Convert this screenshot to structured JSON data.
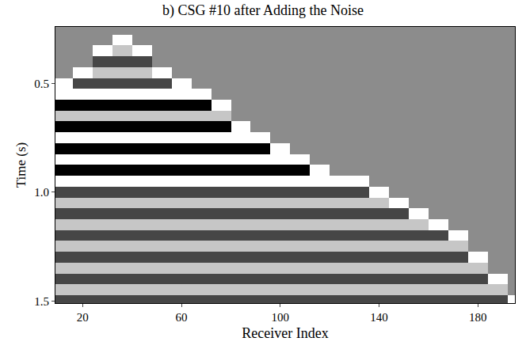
{
  "chart_data": {
    "type": "heatmap",
    "title": "b) CSG #10 after Adding the Noise",
    "xlabel": "Receiver Index",
    "ylabel": "Time (s)",
    "x": [
      12,
      20,
      28,
      36,
      44,
      52,
      60,
      68,
      76,
      84,
      92,
      100,
      108,
      116,
      124,
      132,
      140,
      148,
      156,
      164,
      172,
      180,
      188,
      196
    ],
    "y": [
      0.25,
      0.3,
      0.35,
      0.4,
      0.45,
      0.5,
      0.55,
      0.6,
      0.65,
      0.7,
      0.75,
      0.8,
      0.85,
      0.9,
      0.95,
      1.0,
      1.05,
      1.1,
      1.15,
      1.2,
      1.25,
      1.3,
      1.35,
      1.4,
      1.45,
      1.5
    ],
    "z": [
      [
        0,
        0,
        0,
        0,
        0,
        0,
        0,
        0,
        0,
        0,
        0,
        0,
        0,
        0,
        0,
        0,
        0,
        0,
        0,
        0,
        0,
        0,
        0,
        0
      ],
      [
        0,
        0,
        0,
        2,
        0,
        0,
        0,
        0,
        0,
        0,
        0,
        0,
        0,
        0,
        0,
        0,
        0,
        0,
        0,
        0,
        0,
        0,
        0,
        0
      ],
      [
        0,
        0,
        2,
        1,
        2,
        0,
        0,
        0,
        0,
        0,
        0,
        0,
        0,
        0,
        0,
        0,
        0,
        0,
        0,
        0,
        0,
        0,
        0,
        0
      ],
      [
        0,
        0,
        -1,
        -1,
        -1,
        0,
        0,
        0,
        0,
        0,
        0,
        0,
        0,
        0,
        0,
        0,
        0,
        0,
        0,
        0,
        0,
        0,
        0,
        0
      ],
      [
        0,
        2,
        1,
        1,
        1,
        2,
        0,
        0,
        0,
        0,
        0,
        0,
        0,
        0,
        0,
        0,
        0,
        0,
        0,
        0,
        0,
        0,
        0,
        0
      ],
      [
        2,
        -1,
        -1,
        -1,
        -1,
        -1,
        2,
        0,
        0,
        0,
        0,
        0,
        0,
        0,
        0,
        0,
        0,
        0,
        0,
        0,
        0,
        0,
        0,
        0
      ],
      [
        2,
        2,
        2,
        2,
        2,
        2,
        2,
        2,
        0,
        0,
        0,
        0,
        0,
        0,
        0,
        0,
        0,
        0,
        0,
        0,
        0,
        0,
        0,
        0
      ],
      [
        -2,
        -2,
        -2,
        -2,
        -2,
        -2,
        -2,
        -2,
        2,
        0,
        0,
        0,
        0,
        0,
        0,
        0,
        0,
        0,
        0,
        0,
        0,
        0,
        0,
        0
      ],
      [
        1,
        1,
        1,
        1,
        1,
        1,
        1,
        1,
        1,
        0,
        0,
        0,
        0,
        0,
        0,
        0,
        0,
        0,
        0,
        0,
        0,
        0,
        0,
        0
      ],
      [
        -2,
        -2,
        -2,
        -2,
        -2,
        -2,
        -2,
        -2,
        -2,
        2,
        0,
        0,
        0,
        0,
        0,
        0,
        0,
        0,
        0,
        0,
        0,
        0,
        0,
        0
      ],
      [
        2,
        2,
        2,
        2,
        2,
        2,
        2,
        2,
        2,
        2,
        2,
        0,
        0,
        0,
        0,
        0,
        0,
        0,
        0,
        0,
        0,
        0,
        0,
        0
      ],
      [
        -2,
        -2,
        -2,
        -2,
        -2,
        -2,
        -2,
        -2,
        -2,
        -2,
        -2,
        2,
        0,
        0,
        0,
        0,
        0,
        0,
        0,
        0,
        0,
        0,
        0,
        0
      ],
      [
        2,
        2,
        2,
        2,
        2,
        2,
        2,
        2,
        2,
        2,
        2,
        2,
        2,
        0,
        0,
        0,
        0,
        0,
        0,
        0,
        0,
        0,
        0,
        0
      ],
      [
        -2,
        -2,
        -2,
        -2,
        -2,
        -2,
        -2,
        -2,
        -2,
        -2,
        -2,
        -2,
        -2,
        2,
        0,
        0,
        0,
        0,
        0,
        0,
        0,
        0,
        0,
        0
      ],
      [
        2,
        2,
        2,
        2,
        2,
        2,
        2,
        2,
        2,
        2,
        2,
        2,
        2,
        2,
        2,
        2,
        0,
        0,
        0,
        0,
        0,
        0,
        0,
        0
      ],
      [
        -1,
        -1,
        -1,
        -1,
        -1,
        -1,
        -1,
        -1,
        -1,
        -1,
        -1,
        -1,
        -1,
        -1,
        -1,
        -1,
        2,
        0,
        0,
        0,
        0,
        0,
        0,
        0
      ],
      [
        1,
        1,
        1,
        1,
        1,
        1,
        1,
        1,
        1,
        1,
        1,
        1,
        1,
        1,
        1,
        1,
        1,
        2,
        0,
        0,
        0,
        0,
        0,
        0
      ],
      [
        -1,
        -1,
        -1,
        -1,
        -1,
        -1,
        -1,
        -1,
        -1,
        -1,
        -1,
        -1,
        -1,
        -1,
        -1,
        -1,
        -1,
        -1,
        2,
        0,
        0,
        0,
        0,
        0
      ],
      [
        1,
        1,
        1,
        1,
        1,
        1,
        1,
        1,
        1,
        1,
        1,
        1,
        1,
        1,
        1,
        1,
        1,
        1,
        1,
        2,
        0,
        0,
        0,
        0
      ],
      [
        -1,
        -1,
        -1,
        -1,
        -1,
        -1,
        -1,
        -1,
        -1,
        -1,
        -1,
        -1,
        -1,
        -1,
        -1,
        -1,
        -1,
        -1,
        -1,
        -1,
        2,
        0,
        0,
        0
      ],
      [
        1,
        1,
        1,
        1,
        1,
        1,
        1,
        1,
        1,
        1,
        1,
        1,
        1,
        1,
        1,
        1,
        1,
        1,
        1,
        1,
        1,
        0,
        0,
        0
      ],
      [
        -1,
        -1,
        -1,
        -1,
        -1,
        -1,
        -1,
        -1,
        -1,
        -1,
        -1,
        -1,
        -1,
        -1,
        -1,
        -1,
        -1,
        -1,
        -1,
        -1,
        -1,
        2,
        0,
        0
      ],
      [
        1,
        1,
        1,
        1,
        1,
        1,
        1,
        1,
        1,
        1,
        1,
        1,
        1,
        1,
        1,
        1,
        1,
        1,
        1,
        1,
        1,
        1,
        0,
        0
      ],
      [
        -1,
        -1,
        -1,
        -1,
        -1,
        -1,
        -1,
        -1,
        -1,
        -1,
        -1,
        -1,
        -1,
        -1,
        -1,
        -1,
        -1,
        -1,
        -1,
        -1,
        -1,
        -1,
        2,
        0
      ],
      [
        1,
        1,
        1,
        1,
        1,
        1,
        1,
        1,
        1,
        1,
        1,
        1,
        1,
        1,
        1,
        1,
        1,
        1,
        1,
        1,
        1,
        1,
        1,
        0
      ],
      [
        -1,
        -1,
        -1,
        -1,
        -1,
        -1,
        -1,
        -1,
        -1,
        -1,
        -1,
        -1,
        -1,
        -1,
        -1,
        -1,
        -1,
        -1,
        -1,
        -1,
        -1,
        -1,
        -1,
        2
      ]
    ],
    "zlim": [
      -2,
      2
    ],
    "xlim": [
      9,
      195
    ],
    "xticks": [
      20,
      60,
      100,
      140,
      180
    ],
    "ylim": [
      1.51,
      0.24
    ],
    "yticks": [
      0.5,
      {
        "value": 1,
        "label": "1.0"
      },
      1.5
    ],
    "grid": false
  }
}
